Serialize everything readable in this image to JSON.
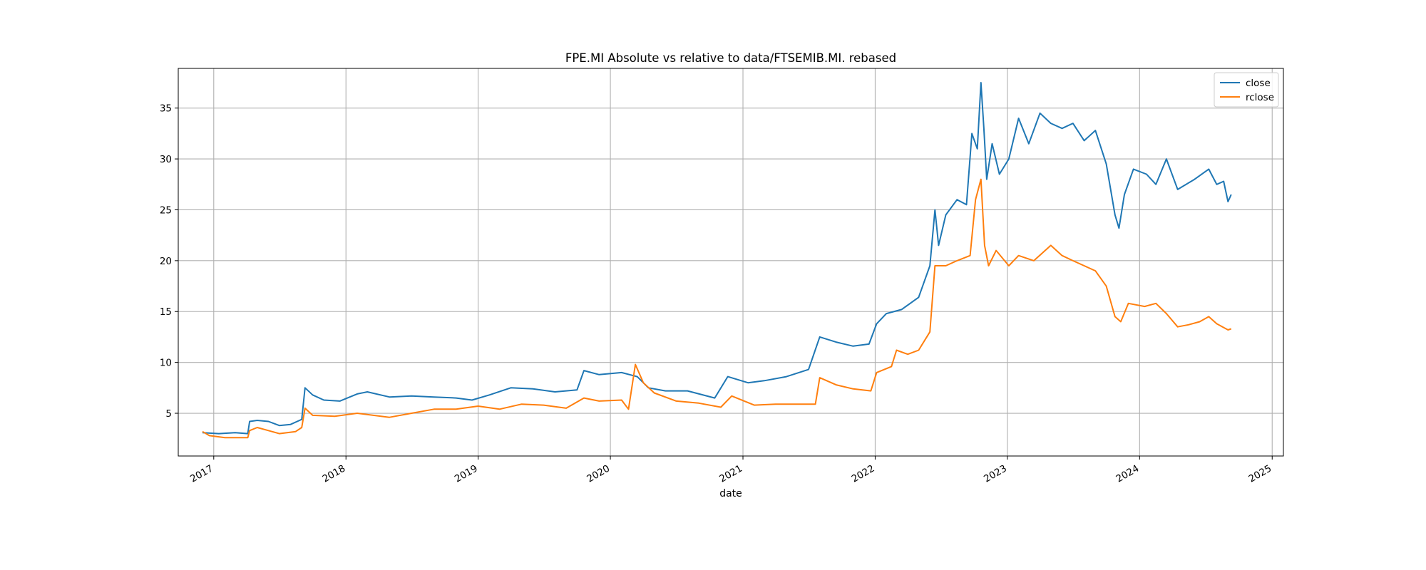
{
  "chart_data": {
    "type": "line",
    "title": "FPE.MI Absolute vs relative to data/FTSEMIB.MI. rebased",
    "xlabel": "date",
    "ylabel": "",
    "xlim": [
      "2016-09-25",
      "2025-02-01"
    ],
    "ylim": [
      0.8,
      38.9
    ],
    "x_ticks": [
      "2017-01-01",
      "2018-01-01",
      "2019-01-01",
      "2020-01-01",
      "2021-01-01",
      "2022-01-01",
      "2023-01-01",
      "2024-01-01",
      "2025-01-01"
    ],
    "x_tick_labels": [
      "2017",
      "2018",
      "2019",
      "2020",
      "2021",
      "2022",
      "2023",
      "2024",
      "2025"
    ],
    "y_ticks": [
      5,
      10,
      15,
      20,
      25,
      30,
      35
    ],
    "grid": true,
    "legend_position": "upper right",
    "series": [
      {
        "name": "close",
        "color": "#1f77b4",
        "points": [
          [
            "2016-12-01",
            3.1
          ],
          [
            "2017-01-15",
            3.0
          ],
          [
            "2017-03-01",
            3.1
          ],
          [
            "2017-04-05",
            3.0
          ],
          [
            "2017-04-10",
            4.2
          ],
          [
            "2017-05-01",
            4.3
          ],
          [
            "2017-06-01",
            4.2
          ],
          [
            "2017-07-01",
            3.8
          ],
          [
            "2017-08-01",
            3.9
          ],
          [
            "2017-09-01",
            4.4
          ],
          [
            "2017-09-10",
            7.5
          ],
          [
            "2017-10-01",
            6.8
          ],
          [
            "2017-11-01",
            6.3
          ],
          [
            "2017-12-15",
            6.2
          ],
          [
            "2018-02-01",
            6.9
          ],
          [
            "2018-03-01",
            7.1
          ],
          [
            "2018-05-01",
            6.6
          ],
          [
            "2018-07-01",
            6.7
          ],
          [
            "2018-09-01",
            6.6
          ],
          [
            "2018-11-01",
            6.5
          ],
          [
            "2018-12-15",
            6.3
          ],
          [
            "2019-02-01",
            6.8
          ],
          [
            "2019-04-01",
            7.5
          ],
          [
            "2019-06-01",
            7.4
          ],
          [
            "2019-08-01",
            7.1
          ],
          [
            "2019-10-01",
            7.3
          ],
          [
            "2019-10-20",
            9.2
          ],
          [
            "2019-12-01",
            8.8
          ],
          [
            "2020-02-01",
            9.0
          ],
          [
            "2020-03-15",
            8.6
          ],
          [
            "2020-04-15",
            7.5
          ],
          [
            "2020-06-01",
            7.2
          ],
          [
            "2020-08-01",
            7.2
          ],
          [
            "2020-10-15",
            6.5
          ],
          [
            "2020-11-20",
            8.6
          ],
          [
            "2021-01-15",
            8.0
          ],
          [
            "2021-03-01",
            8.2
          ],
          [
            "2021-05-01",
            8.6
          ],
          [
            "2021-07-01",
            9.3
          ],
          [
            "2021-08-01",
            12.5
          ],
          [
            "2021-09-15",
            12.0
          ],
          [
            "2021-11-01",
            11.6
          ],
          [
            "2021-12-15",
            11.8
          ],
          [
            "2022-01-05",
            13.8
          ],
          [
            "2022-02-01",
            14.8
          ],
          [
            "2022-03-15",
            15.2
          ],
          [
            "2022-05-01",
            16.4
          ],
          [
            "2022-06-01",
            19.5
          ],
          [
            "2022-06-15",
            25.0
          ],
          [
            "2022-06-25",
            21.5
          ],
          [
            "2022-07-15",
            24.5
          ],
          [
            "2022-08-15",
            26.0
          ],
          [
            "2022-09-10",
            25.5
          ],
          [
            "2022-09-25",
            32.5
          ],
          [
            "2022-10-10",
            31.0
          ],
          [
            "2022-10-20",
            37.5
          ],
          [
            "2022-10-28",
            33.0
          ],
          [
            "2022-11-05",
            28.0
          ],
          [
            "2022-11-20",
            31.5
          ],
          [
            "2022-12-10",
            28.5
          ],
          [
            "2023-01-05",
            30.0
          ],
          [
            "2023-02-01",
            34.0
          ],
          [
            "2023-03-01",
            31.5
          ],
          [
            "2023-04-01",
            34.5
          ],
          [
            "2023-05-01",
            33.5
          ],
          [
            "2023-06-01",
            33.0
          ],
          [
            "2023-07-01",
            33.5
          ],
          [
            "2023-08-01",
            31.8
          ],
          [
            "2023-09-01",
            32.8
          ],
          [
            "2023-10-01",
            29.5
          ],
          [
            "2023-10-25",
            24.5
          ],
          [
            "2023-11-05",
            23.2
          ],
          [
            "2023-11-20",
            26.5
          ],
          [
            "2023-12-15",
            29.0
          ],
          [
            "2024-01-20",
            28.5
          ],
          [
            "2024-02-15",
            27.5
          ],
          [
            "2024-03-15",
            30.0
          ],
          [
            "2024-04-15",
            27.0
          ],
          [
            "2024-06-01",
            28.0
          ],
          [
            "2024-07-10",
            29.0
          ],
          [
            "2024-08-01",
            27.5
          ],
          [
            "2024-08-20",
            27.8
          ],
          [
            "2024-09-01",
            25.8
          ],
          [
            "2024-09-10",
            26.5
          ]
        ]
      },
      {
        "name": "rclose",
        "color": "#ff7f0e",
        "points": [
          [
            "2016-12-01",
            3.2
          ],
          [
            "2016-12-20",
            2.8
          ],
          [
            "2017-02-01",
            2.6
          ],
          [
            "2017-04-05",
            2.6
          ],
          [
            "2017-04-10",
            3.3
          ],
          [
            "2017-05-01",
            3.6
          ],
          [
            "2017-06-01",
            3.3
          ],
          [
            "2017-07-01",
            3.0
          ],
          [
            "2017-08-15",
            3.2
          ],
          [
            "2017-09-01",
            3.6
          ],
          [
            "2017-09-10",
            5.5
          ],
          [
            "2017-10-01",
            4.8
          ],
          [
            "2017-12-01",
            4.7
          ],
          [
            "2018-02-01",
            5.0
          ],
          [
            "2018-05-01",
            4.6
          ],
          [
            "2018-07-01",
            5.0
          ],
          [
            "2018-09-01",
            5.4
          ],
          [
            "2018-11-01",
            5.4
          ],
          [
            "2019-01-01",
            5.7
          ],
          [
            "2019-03-01",
            5.4
          ],
          [
            "2019-05-01",
            5.9
          ],
          [
            "2019-07-01",
            5.8
          ],
          [
            "2019-09-01",
            5.5
          ],
          [
            "2019-10-20",
            6.5
          ],
          [
            "2019-12-01",
            6.2
          ],
          [
            "2020-02-01",
            6.3
          ],
          [
            "2020-02-20",
            5.4
          ],
          [
            "2020-03-10",
            9.8
          ],
          [
            "2020-04-01",
            8.0
          ],
          [
            "2020-05-01",
            7.0
          ],
          [
            "2020-07-01",
            6.2
          ],
          [
            "2020-09-01",
            6.0
          ],
          [
            "2020-11-01",
            5.6
          ],
          [
            "2020-12-01",
            6.7
          ],
          [
            "2021-02-01",
            5.8
          ],
          [
            "2021-04-01",
            5.9
          ],
          [
            "2021-06-01",
            5.9
          ],
          [
            "2021-07-20",
            5.9
          ],
          [
            "2021-08-01",
            8.5
          ],
          [
            "2021-09-15",
            7.8
          ],
          [
            "2021-11-01",
            7.4
          ],
          [
            "2021-12-20",
            7.2
          ],
          [
            "2022-01-05",
            9.0
          ],
          [
            "2022-02-15",
            9.6
          ],
          [
            "2022-03-01",
            11.2
          ],
          [
            "2022-04-01",
            10.8
          ],
          [
            "2022-05-01",
            11.2
          ],
          [
            "2022-06-01",
            13.0
          ],
          [
            "2022-06-15",
            19.5
          ],
          [
            "2022-07-15",
            19.5
          ],
          [
            "2022-08-15",
            20.0
          ],
          [
            "2022-09-20",
            20.5
          ],
          [
            "2022-10-05",
            26.0
          ],
          [
            "2022-10-20",
            28.0
          ],
          [
            "2022-10-30",
            21.5
          ],
          [
            "2022-11-10",
            19.5
          ],
          [
            "2022-12-01",
            21.0
          ],
          [
            "2023-01-05",
            19.5
          ],
          [
            "2023-02-01",
            20.5
          ],
          [
            "2023-03-15",
            20.0
          ],
          [
            "2023-05-01",
            21.5
          ],
          [
            "2023-06-01",
            20.5
          ],
          [
            "2023-07-01",
            20.0
          ],
          [
            "2023-08-01",
            19.5
          ],
          [
            "2023-09-01",
            19.0
          ],
          [
            "2023-10-01",
            17.5
          ],
          [
            "2023-10-25",
            14.5
          ],
          [
            "2023-11-10",
            14.0
          ],
          [
            "2023-12-01",
            15.8
          ],
          [
            "2024-01-15",
            15.5
          ],
          [
            "2024-02-15",
            15.8
          ],
          [
            "2024-03-15",
            14.8
          ],
          [
            "2024-04-15",
            13.5
          ],
          [
            "2024-05-15",
            13.7
          ],
          [
            "2024-06-15",
            14.0
          ],
          [
            "2024-07-10",
            14.5
          ],
          [
            "2024-08-01",
            13.8
          ],
          [
            "2024-09-01",
            13.2
          ],
          [
            "2024-09-10",
            13.3
          ]
        ]
      }
    ]
  }
}
